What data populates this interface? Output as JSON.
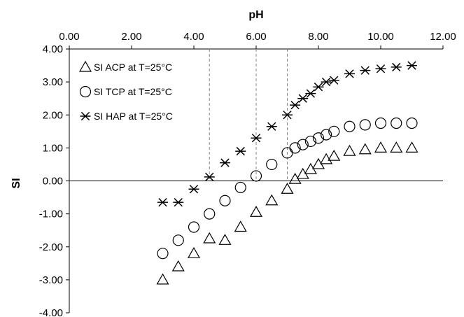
{
  "chart_data": {
    "type": "scatter",
    "xlabel": "pH",
    "ylabel": "SI",
    "xlim": [
      0,
      12
    ],
    "ylim": [
      -4,
      4
    ],
    "x_ticks": [
      "0.00",
      "2.00",
      "4.00",
      "6.00",
      "8.00",
      "10.00",
      "12.00"
    ],
    "y_ticks": [
      "4.00",
      "3.00",
      "2.00",
      "1.00",
      "0.00",
      "-1.00",
      "-2.00",
      "-3.00",
      "-4.00"
    ],
    "x_tick_values": [
      0,
      2,
      4,
      6,
      8,
      10,
      12
    ],
    "y_tick_values": [
      4,
      3,
      2,
      1,
      0,
      -1,
      -2,
      -3,
      -4
    ],
    "x_axis_position": "top",
    "reference_lines_x": [
      4.5,
      6.0,
      7.0
    ],
    "legend_position": "top-left",
    "series": [
      {
        "name": "SI ACP at T=25°C",
        "marker": "triangle",
        "x": [
          3.0,
          3.5,
          4.0,
          4.5,
          5.0,
          5.5,
          6.0,
          6.5,
          7.0,
          7.25,
          7.5,
          7.75,
          8.0,
          8.25,
          8.5,
          9.0,
          9.5,
          10.0,
          10.5,
          11.0
        ],
        "y": [
          -3.0,
          -2.6,
          -2.2,
          -1.75,
          -1.8,
          -1.4,
          -0.95,
          -0.6,
          -0.25,
          0.05,
          0.2,
          0.35,
          0.5,
          0.65,
          0.75,
          0.9,
          0.95,
          1.0,
          1.0,
          1.0
        ]
      },
      {
        "name": "SI TCP at T=25°C",
        "marker": "circle",
        "x": [
          3.0,
          3.5,
          4.0,
          4.5,
          5.0,
          5.5,
          6.0,
          6.5,
          7.0,
          7.25,
          7.5,
          7.75,
          8.0,
          8.25,
          8.5,
          9.0,
          9.5,
          10.0,
          10.5,
          11.0
        ],
        "y": [
          -2.2,
          -1.8,
          -1.4,
          -1.0,
          -0.6,
          -0.2,
          0.15,
          0.5,
          0.85,
          1.0,
          1.1,
          1.2,
          1.3,
          1.4,
          1.5,
          1.65,
          1.7,
          1.75,
          1.75,
          1.75
        ]
      },
      {
        "name": "SI HAP at T=25°C",
        "marker": "asterisk",
        "x": [
          3.0,
          3.5,
          4.0,
          4.5,
          5.0,
          5.5,
          6.0,
          6.5,
          7.0,
          7.25,
          7.5,
          7.75,
          8.0,
          8.25,
          8.5,
          9.0,
          9.5,
          10.0,
          10.5,
          11.0
        ],
        "y": [
          -0.65,
          -0.65,
          -0.25,
          0.12,
          0.55,
          0.9,
          1.3,
          1.65,
          2.0,
          2.3,
          2.5,
          2.65,
          2.85,
          3.0,
          3.05,
          3.25,
          3.35,
          3.4,
          3.45,
          3.5
        ]
      }
    ]
  }
}
